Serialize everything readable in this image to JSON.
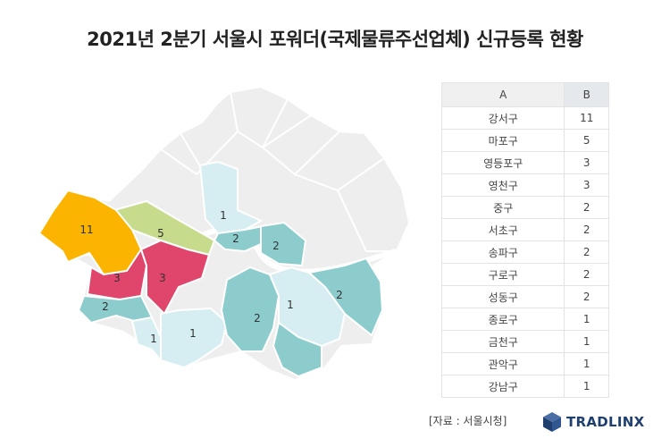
{
  "title": "2021년 2분기 서울시 포워더(국제물류주선업체) 신규등록 현황",
  "source": "[자료 : 서울시청]",
  "logo": {
    "text": "TRADLINX",
    "icon": "tradlinx-cube-icon"
  },
  "colors": {
    "background_district": "#eeeeee",
    "value_1": "#d6eef1",
    "value_2": "#8ccccd",
    "value_3": "#e0456b",
    "value_5": "#c6dc8c",
    "value_11": "#fbb400"
  },
  "chart_data": [
    {
      "type": "map",
      "regions": [
        {
          "name": "강서구",
          "value": 11
        },
        {
          "name": "마포구",
          "value": 5
        },
        {
          "name": "영등포구",
          "value": 3
        },
        {
          "name": "영천구",
          "value": 3
        },
        {
          "name": "중구",
          "value": 2
        },
        {
          "name": "서초구",
          "value": 2
        },
        {
          "name": "송파구",
          "value": 2
        },
        {
          "name": "구로구",
          "value": 2
        },
        {
          "name": "성동구",
          "value": 2
        },
        {
          "name": "종로구",
          "value": 1
        },
        {
          "name": "금천구",
          "value": 1
        },
        {
          "name": "관악구",
          "value": 1
        },
        {
          "name": "강남구",
          "value": 1
        }
      ]
    },
    {
      "type": "table",
      "columns": [
        "A",
        "B"
      ],
      "rows": [
        [
          "강서구",
          "11"
        ],
        [
          "마포구",
          "5"
        ],
        [
          "영등포구",
          "3"
        ],
        [
          "영천구",
          "3"
        ],
        [
          "중구",
          "2"
        ],
        [
          "서초구",
          "2"
        ],
        [
          "송파구",
          "2"
        ],
        [
          "구로구",
          "2"
        ],
        [
          "성동구",
          "2"
        ],
        [
          "종로구",
          "1"
        ],
        [
          "금천구",
          "1"
        ],
        [
          "관악구",
          "1"
        ],
        [
          "강남구",
          "1"
        ]
      ]
    }
  ]
}
